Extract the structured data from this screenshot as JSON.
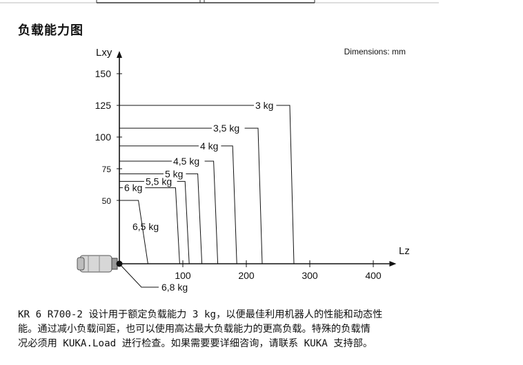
{
  "section_title": "负载能力图",
  "chart_data": {
    "type": "line",
    "title": "",
    "annotation": "Dimensions: mm",
    "xlabel": "Lz",
    "ylabel": "Lxy",
    "xlim": [
      -20,
      420
    ],
    "ylim": [
      -5,
      165
    ],
    "x_ticks": [
      100,
      200,
      300,
      400
    ],
    "y_ticks": [
      50,
      75,
      100,
      125,
      150
    ],
    "series": [
      {
        "name": "3 kg",
        "lxy": 125,
        "lz": 275
      },
      {
        "name": "3,5 kg",
        "lxy": 107,
        "lz": 225
      },
      {
        "name": "4 kg",
        "lxy": 93,
        "lz": 185
      },
      {
        "name": "4,5 kg",
        "lxy": 81,
        "lz": 155
      },
      {
        "name": "5 kg",
        "lxy": 71,
        "lz": 130
      },
      {
        "name": "5,5 kg",
        "lxy": 65,
        "lz": 110
      },
      {
        "name": "6 kg",
        "lxy": 60,
        "lz": 95
      },
      {
        "name": "6,5 kg",
        "lxy": 50,
        "lz": 45
      },
      {
        "name": "6,8 kg",
        "lxy": 0,
        "lz": 0
      }
    ]
  },
  "description": "KR 6 R700-2 设计用于额定负载能力 3 kg，以便最佳利用机器人的性能和动态性\n能。通过减小负载间距，也可以使用高达最大负载能力的更高负载。特殊的负载情\n况必须用 KUKA.Load 进行检查。如果需要要详细咨询，请联系 KUKA 支持部。"
}
